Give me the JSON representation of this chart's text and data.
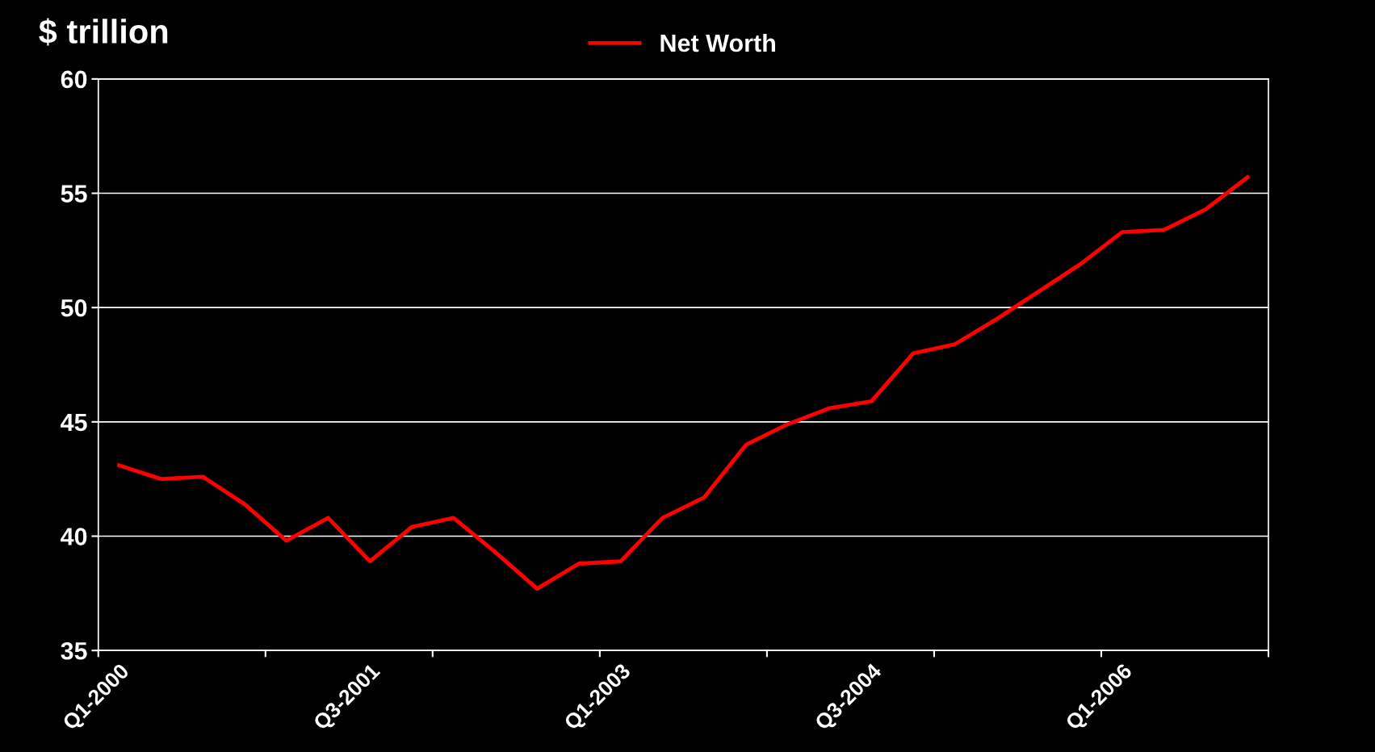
{
  "chart_data": {
    "type": "line",
    "ylabel": "$ trillion",
    "categories": [
      "Q1-2000",
      null,
      null,
      null,
      null,
      null,
      "Q3-2001",
      null,
      null,
      null,
      null,
      null,
      "Q1-2003",
      null,
      null,
      null,
      null,
      null,
      "Q3-2004",
      null,
      null,
      null,
      null,
      null,
      "Q1-2006",
      null,
      null,
      null
    ],
    "series": [
      {
        "name": "Net Worth",
        "color": "#ff0000",
        "values": [
          43.1,
          42.5,
          42.6,
          41.4,
          39.8,
          40.8,
          38.9,
          40.4,
          40.8,
          39.3,
          37.7,
          38.8,
          38.9,
          40.8,
          41.7,
          44.0,
          44.9,
          45.6,
          45.9,
          48.0,
          48.4,
          49.5,
          50.7,
          51.9,
          53.3,
          53.4,
          54.3,
          55.7
        ]
      }
    ],
    "ylim": [
      35,
      60
    ],
    "yticks": [
      35,
      40,
      45,
      50,
      55,
      60
    ],
    "grid": "y",
    "legend": "top",
    "marker": "none",
    "line_style": "solid"
  }
}
